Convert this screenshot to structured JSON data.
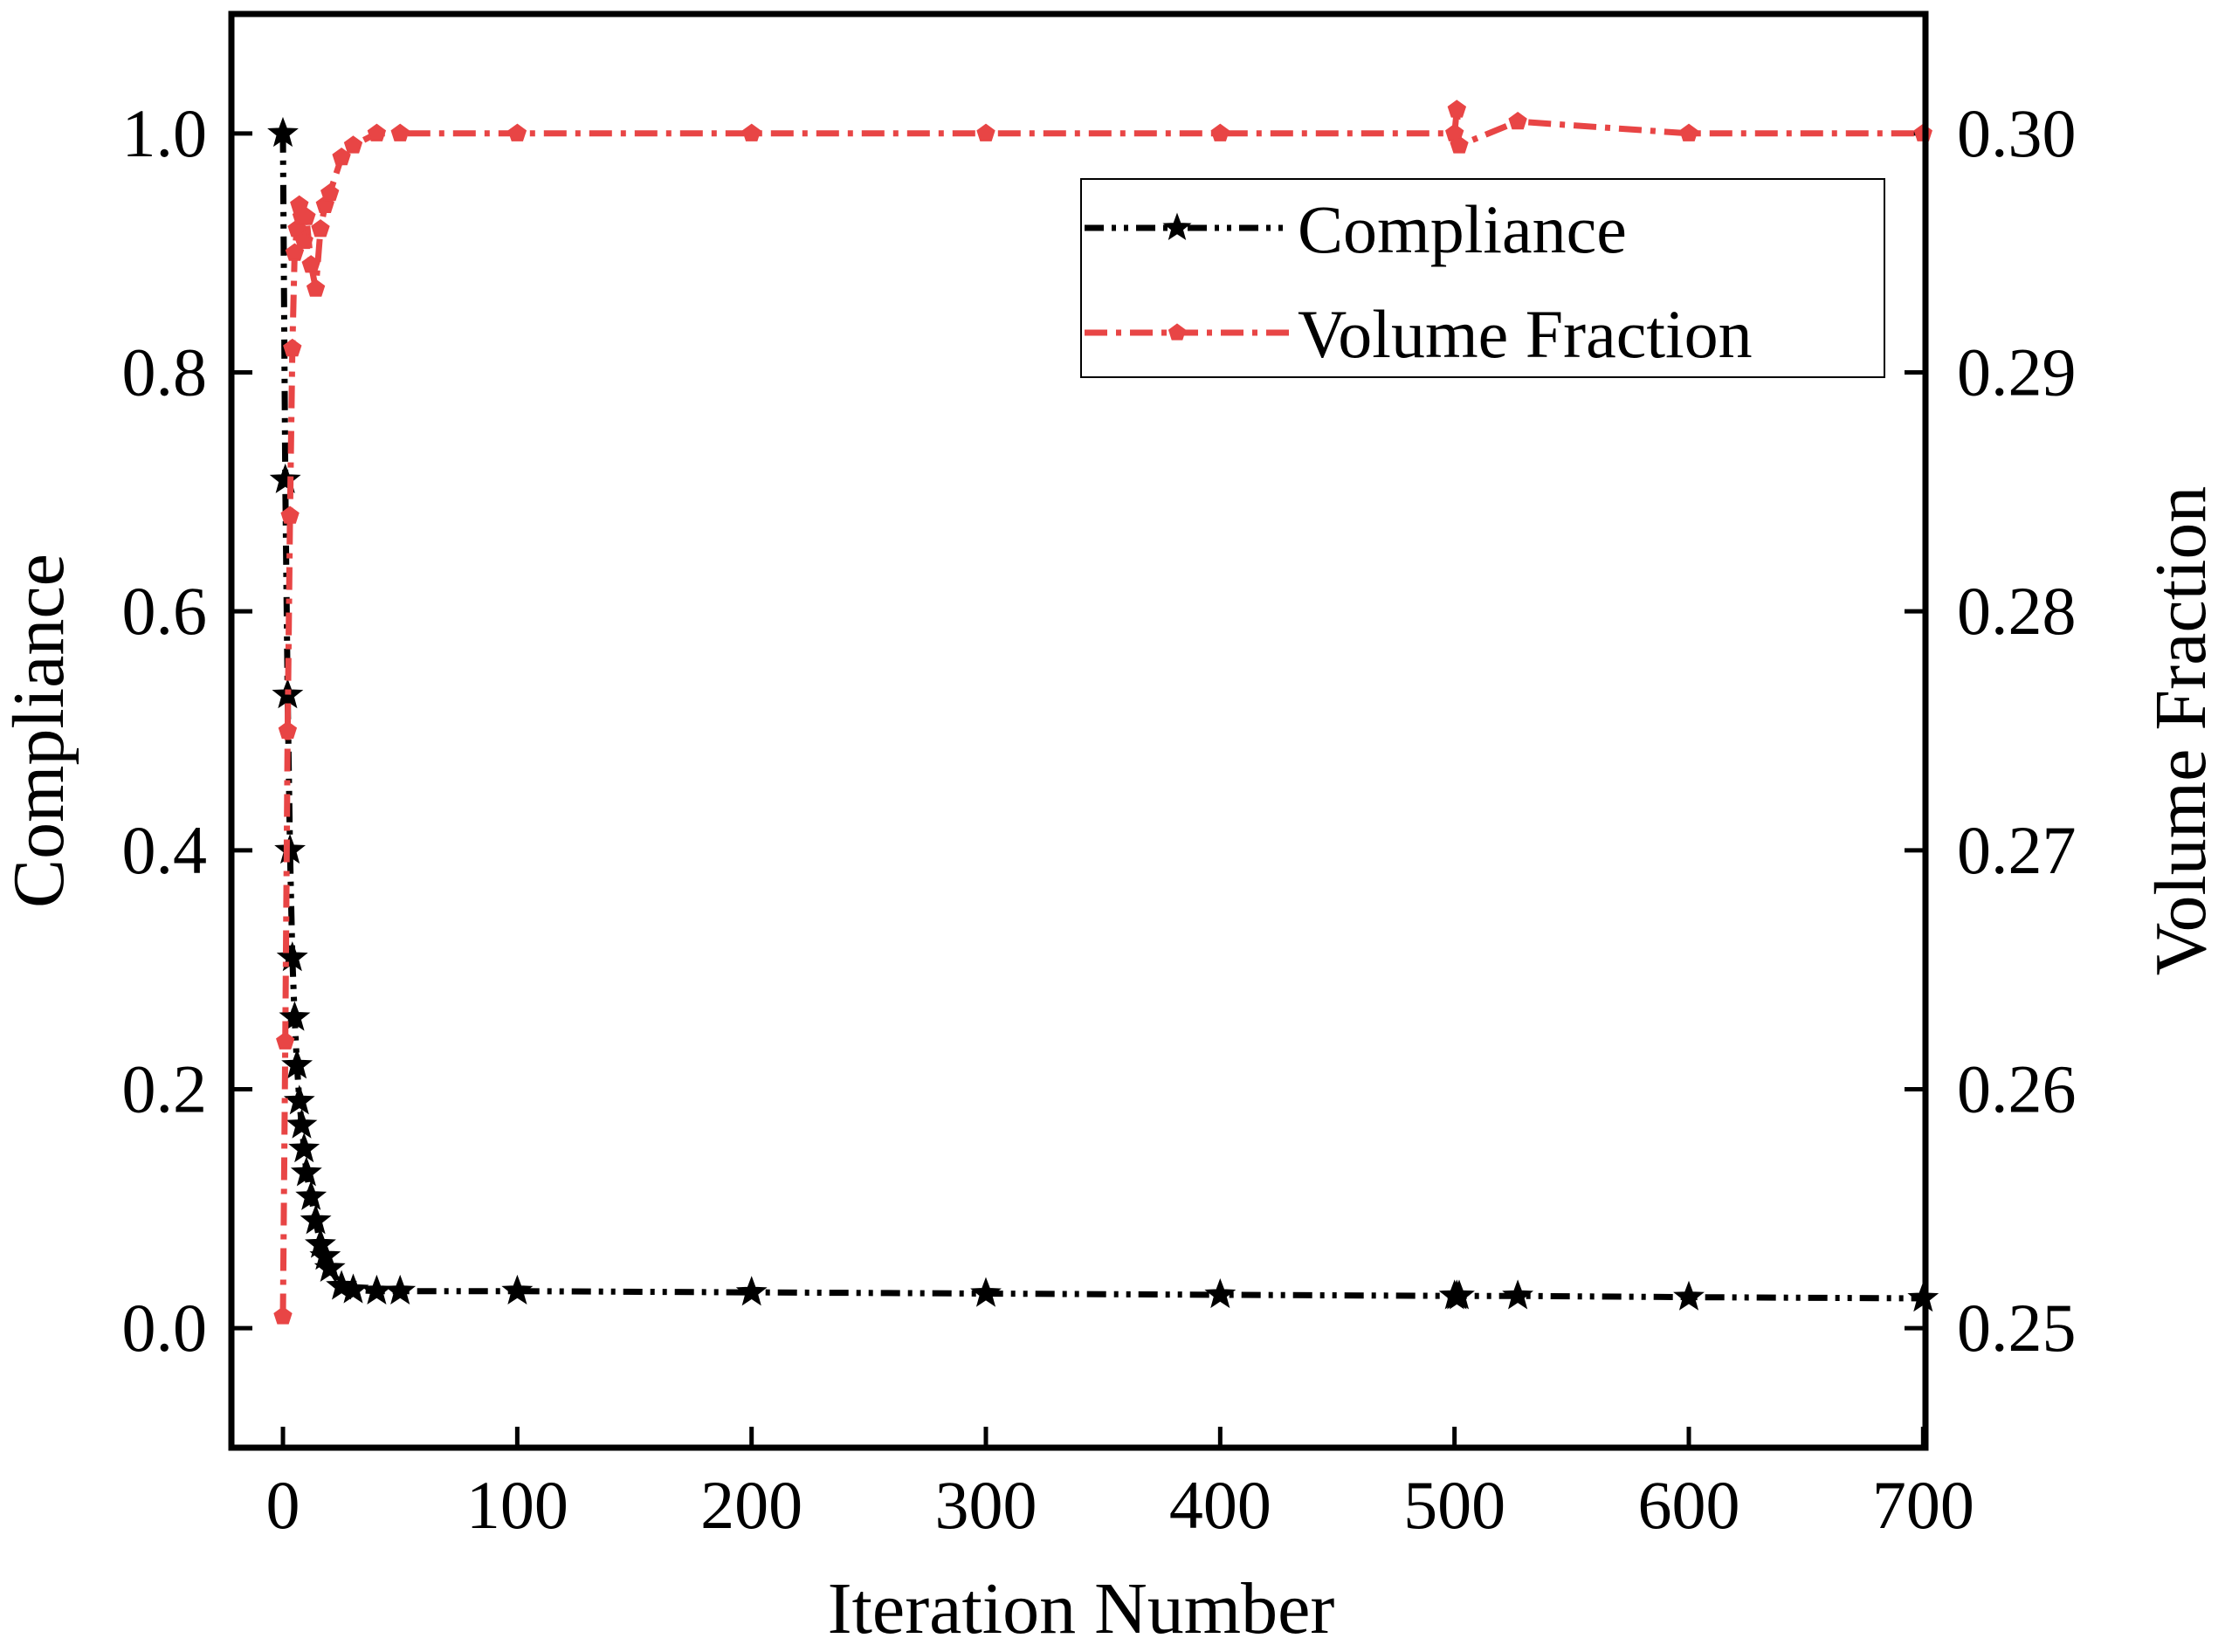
{
  "chart_data": {
    "type": "line",
    "x_label": "Iteration Number",
    "y_label": "Compliance",
    "y2_label": "Volume Fraction",
    "x": [
      0,
      1,
      2,
      3,
      4,
      5,
      6,
      7,
      8,
      9,
      10,
      12,
      14,
      16,
      18,
      20,
      25,
      30,
      40,
      50,
      100,
      200,
      300,
      400,
      500,
      501,
      502,
      527,
      600,
      700
    ],
    "series": [
      {
        "name": "Compliance",
        "color": "#000000",
        "marker": "star",
        "dash": "dash-dot-dot",
        "values": [
          1.0,
          0.71,
          0.53,
          0.4,
          0.31,
          0.26,
          0.22,
          0.19,
          0.17,
          0.15,
          0.13,
          0.11,
          0.09,
          0.07,
          0.06,
          0.05,
          0.035,
          0.032,
          0.031,
          0.031,
          0.031,
          0.03,
          0.029,
          0.028,
          0.027,
          0.027,
          0.027,
          0.027,
          0.026,
          0.025
        ]
      },
      {
        "name": "Volume Fraction",
        "color": "#e84545",
        "marker": "pentagon",
        "dash": "dash-dot",
        "axis": "y2",
        "values": [
          0.2505,
          0.262,
          0.275,
          0.284,
          0.291,
          0.295,
          0.296,
          0.297,
          0.2965,
          0.2955,
          0.2965,
          0.2945,
          0.2935,
          0.296,
          0.297,
          0.2975,
          0.299,
          0.2995,
          0.3,
          0.3,
          0.3,
          0.3,
          0.3,
          0.3,
          0.3,
          0.301,
          0.2995,
          0.3005,
          0.3,
          0.3
        ]
      }
    ],
    "xlim": [
      -22,
      701
    ],
    "ylim": [
      -0.1,
      1.1
    ],
    "y2lim": [
      0.245,
      0.305
    ],
    "xticks": [
      0,
      100,
      200,
      300,
      400,
      500,
      600,
      700
    ],
    "yticks": [
      {
        "value": 0,
        "label": "0.0"
      },
      {
        "value": 0.2,
        "label": "0.2"
      },
      {
        "value": 0.4,
        "label": "0.4"
      },
      {
        "value": 0.6,
        "label": "0.6"
      },
      {
        "value": 0.8,
        "label": "0.8"
      },
      {
        "value": 1,
        "label": "1.0"
      }
    ],
    "y2ticks": [
      {
        "value": 0.25,
        "label": "0.25"
      },
      {
        "value": 0.26,
        "label": "0.26"
      },
      {
        "value": 0.27,
        "label": "0.27"
      },
      {
        "value": 0.28,
        "label": "0.28"
      },
      {
        "value": 0.29,
        "label": "0.29"
      },
      {
        "value": 0.3,
        "label": "0.30"
      }
    ],
    "legend": "upper right",
    "grid": false
  }
}
